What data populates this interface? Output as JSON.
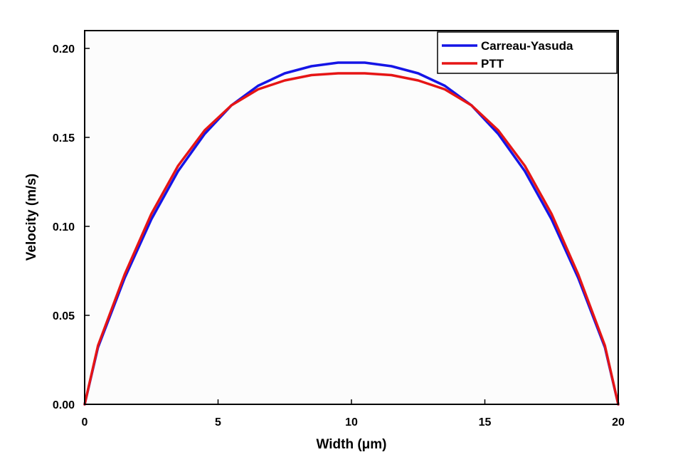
{
  "chart_data": {
    "type": "line",
    "title": "",
    "xlabel": "Width (μm)",
    "ylabel": "Velocity (m/s)",
    "xlim": [
      0,
      20
    ],
    "ylim": [
      0,
      0.21
    ],
    "x_ticks": [
      "0",
      "5",
      "10",
      "15",
      "20"
    ],
    "y_ticks": [
      "0.00",
      "0.05",
      "0.10",
      "0.15",
      "0.20"
    ],
    "grid": false,
    "legend_position": "top-right",
    "series": [
      {
        "name": "Carreau-Yasuda",
        "color": "#1515e6",
        "x": [
          0,
          0.5,
          1.5,
          2.5,
          3.5,
          4.5,
          5.5,
          6.5,
          7.5,
          8.5,
          9.5,
          10.5,
          11.5,
          12.5,
          13.5,
          14.5,
          15.5,
          16.5,
          17.5,
          18.5,
          19.5,
          20
        ],
        "y": [
          0,
          0.032,
          0.071,
          0.104,
          0.131,
          0.152,
          0.168,
          0.179,
          0.186,
          0.19,
          0.192,
          0.192,
          0.19,
          0.186,
          0.179,
          0.168,
          0.152,
          0.131,
          0.104,
          0.071,
          0.032,
          0
        ]
      },
      {
        "name": "PTT",
        "color": "#e61515",
        "x": [
          0,
          0.5,
          1.5,
          2.5,
          3.5,
          4.5,
          5.5,
          6.5,
          7.5,
          8.5,
          9.5,
          10.5,
          11.5,
          12.5,
          13.5,
          14.5,
          15.5,
          16.5,
          17.5,
          18.5,
          19.5,
          20
        ],
        "y": [
          0,
          0.033,
          0.073,
          0.107,
          0.134,
          0.154,
          0.168,
          0.177,
          0.182,
          0.185,
          0.186,
          0.186,
          0.185,
          0.182,
          0.177,
          0.168,
          0.154,
          0.134,
          0.107,
          0.073,
          0.033,
          0
        ]
      }
    ]
  }
}
